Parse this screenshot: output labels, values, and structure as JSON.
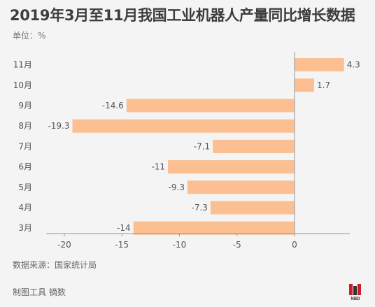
{
  "header": {
    "title": "2019年3月至11月我国工业机器人产量同比增长数据",
    "unit_label": "单位：%"
  },
  "footer": {
    "source": "数据来源：国家统计局",
    "maker": "制图工具 镝数",
    "logo_text": "NBD"
  },
  "colors": {
    "bar": "#fbbf91",
    "axis": "#999999",
    "text": "#555555"
  },
  "chart_data": {
    "type": "bar",
    "orientation": "horizontal",
    "title": "2019年3月至11月我国工业机器人产量同比增长数据",
    "categories": [
      "11月",
      "10月",
      "9月",
      "8月",
      "7月",
      "6月",
      "5月",
      "4月",
      "3月"
    ],
    "values": [
      4.3,
      1.7,
      -14.6,
      -19.3,
      -7.1,
      -11,
      -9.3,
      -7.3,
      -14
    ],
    "value_labels": [
      "4.3",
      "1.7",
      "-14.6",
      "-19.3",
      "-7.1",
      "-11",
      "-9.3",
      "-7.3",
      "-14"
    ],
    "xlim": [
      -20,
      4.3
    ],
    "x_ticks": [
      -20,
      -15,
      -10,
      -5,
      0
    ],
    "x_tick_labels": [
      "-20",
      "-15",
      "-10",
      "-5",
      "0"
    ],
    "grid": false,
    "legend": "none"
  }
}
